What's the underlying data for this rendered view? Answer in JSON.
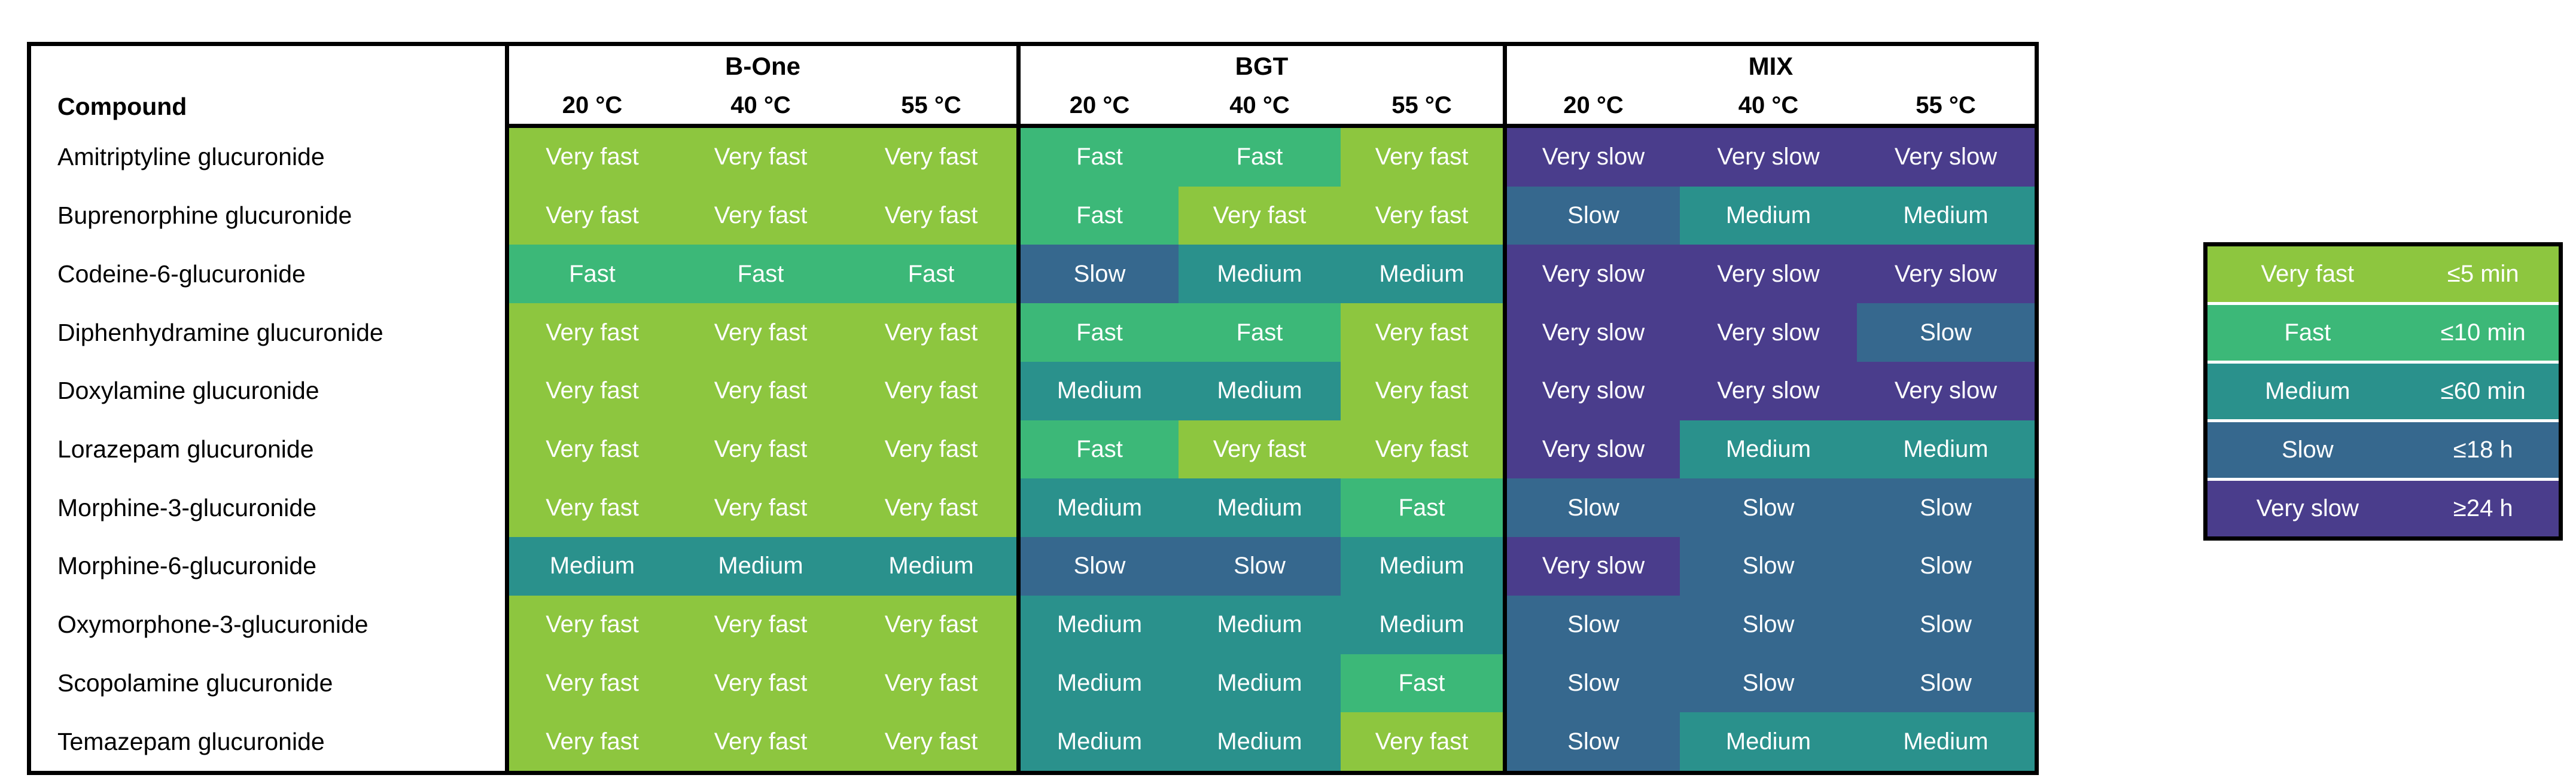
{
  "table": {
    "compound_header": "Compound",
    "groups": [
      {
        "name": "B-One",
        "temps": [
          "20 °C",
          "40 °C",
          "55 °C"
        ]
      },
      {
        "name": "BGT",
        "temps": [
          "20 °C",
          "40 °C",
          "55 °C"
        ]
      },
      {
        "name": "MIX",
        "temps": [
          "20 °C",
          "40 °C",
          "55 °C"
        ]
      }
    ],
    "rows": [
      {
        "compound": "Amitriptyline glucuronide",
        "values": [
          "Very fast",
          "Very fast",
          "Very fast",
          "Fast",
          "Fast",
          "Very fast",
          "Very slow",
          "Very slow",
          "Very slow"
        ]
      },
      {
        "compound": "Buprenorphine glucuronide",
        "values": [
          "Very fast",
          "Very fast",
          "Very fast",
          "Fast",
          "Very fast",
          "Very fast",
          "Slow",
          "Medium",
          "Medium"
        ]
      },
      {
        "compound": "Codeine-6-glucuronide",
        "values": [
          "Fast",
          "Fast",
          "Fast",
          "Slow",
          "Medium",
          "Medium",
          "Very slow",
          "Very slow",
          "Very slow"
        ]
      },
      {
        "compound": "Diphenhydramine glucuronide",
        "values": [
          "Very fast",
          "Very fast",
          "Very fast",
          "Fast",
          "Fast",
          "Very fast",
          "Very slow",
          "Very slow",
          "Slow"
        ]
      },
      {
        "compound": "Doxylamine glucuronide",
        "values": [
          "Very fast",
          "Very fast",
          "Very fast",
          "Medium",
          "Medium",
          "Very fast",
          "Very slow",
          "Very slow",
          "Very slow"
        ]
      },
      {
        "compound": "Lorazepam glucuronide",
        "values": [
          "Very fast",
          "Very fast",
          "Very fast",
          "Fast",
          "Very fast",
          "Very fast",
          "Very slow",
          "Medium",
          "Medium"
        ]
      },
      {
        "compound": "Morphine-3-glucuronide",
        "values": [
          "Very fast",
          "Very fast",
          "Very fast",
          "Medium",
          "Medium",
          "Fast",
          "Slow",
          "Slow",
          "Slow"
        ]
      },
      {
        "compound": "Morphine-6-glucuronide",
        "values": [
          "Medium",
          "Medium",
          "Medium",
          "Slow",
          "Slow",
          "Medium",
          "Very slow",
          "Slow",
          "Slow"
        ]
      },
      {
        "compound": "Oxymorphone-3-glucuronide",
        "values": [
          "Very fast",
          "Very fast",
          "Very fast",
          "Medium",
          "Medium",
          "Medium",
          "Slow",
          "Slow",
          "Slow"
        ]
      },
      {
        "compound": "Scopolamine glucuronide",
        "values": [
          "Very fast",
          "Very fast",
          "Very fast",
          "Medium",
          "Medium",
          "Fast",
          "Slow",
          "Slow",
          "Slow"
        ]
      },
      {
        "compound": "Temazepam glucuronide",
        "values": [
          "Very fast",
          "Very fast",
          "Very fast",
          "Medium",
          "Medium",
          "Very fast",
          "Slow",
          "Medium",
          "Medium"
        ]
      }
    ]
  },
  "levels": {
    "Very fast": "#8DC63F",
    "Fast": "#3CB878",
    "Medium": "#2A918C",
    "Slow": "#36688E",
    "Very slow": "#4A3D8C"
  },
  "legend": {
    "items": [
      {
        "label": "Very fast",
        "value": "≤5 min"
      },
      {
        "label": "Fast",
        "value": "≤10 min"
      },
      {
        "label": "Medium",
        "value": "≤60 min"
      },
      {
        "label": "Slow",
        "value": "≤18 h"
      },
      {
        "label": "Very slow",
        "value": "≥24 h"
      }
    ]
  },
  "chart_data": {
    "type": "heatmap",
    "title": "",
    "row_label_header": "Compound",
    "column_groups": [
      "B-One",
      "BGT",
      "MIX"
    ],
    "columns": [
      "B-One 20 °C",
      "B-One 40 °C",
      "B-One 55 °C",
      "BGT 20 °C",
      "BGT 40 °C",
      "BGT 55 °C",
      "MIX 20 °C",
      "MIX 40 °C",
      "MIX 55 °C"
    ],
    "rows": [
      "Amitriptyline glucuronide",
      "Buprenorphine glucuronide",
      "Codeine-6-glucuronide",
      "Diphenhydramine glucuronide",
      "Doxylamine glucuronide",
      "Lorazepam glucuronide",
      "Morphine-3-glucuronide",
      "Morphine-6-glucuronide",
      "Oxymorphone-3-glucuronide",
      "Scopolamine glucuronide",
      "Temazepam glucuronide"
    ],
    "values": [
      [
        "Very fast",
        "Very fast",
        "Very fast",
        "Fast",
        "Fast",
        "Very fast",
        "Very slow",
        "Very slow",
        "Very slow"
      ],
      [
        "Very fast",
        "Very fast",
        "Very fast",
        "Fast",
        "Very fast",
        "Very fast",
        "Slow",
        "Medium",
        "Medium"
      ],
      [
        "Fast",
        "Fast",
        "Fast",
        "Slow",
        "Medium",
        "Medium",
        "Very slow",
        "Very slow",
        "Very slow"
      ],
      [
        "Very fast",
        "Very fast",
        "Very fast",
        "Fast",
        "Fast",
        "Very fast",
        "Very slow",
        "Very slow",
        "Slow"
      ],
      [
        "Very fast",
        "Very fast",
        "Very fast",
        "Medium",
        "Medium",
        "Very fast",
        "Very slow",
        "Very slow",
        "Very slow"
      ],
      [
        "Very fast",
        "Very fast",
        "Very fast",
        "Fast",
        "Very fast",
        "Very fast",
        "Very slow",
        "Medium",
        "Medium"
      ],
      [
        "Very fast",
        "Very fast",
        "Very fast",
        "Medium",
        "Medium",
        "Fast",
        "Slow",
        "Slow",
        "Slow"
      ],
      [
        "Medium",
        "Medium",
        "Medium",
        "Slow",
        "Slow",
        "Medium",
        "Very slow",
        "Slow",
        "Slow"
      ],
      [
        "Very fast",
        "Very fast",
        "Very fast",
        "Medium",
        "Medium",
        "Medium",
        "Slow",
        "Slow",
        "Slow"
      ],
      [
        "Very fast",
        "Very fast",
        "Very fast",
        "Medium",
        "Medium",
        "Fast",
        "Slow",
        "Slow",
        "Slow"
      ],
      [
        "Very fast",
        "Very fast",
        "Very fast",
        "Medium",
        "Medium",
        "Very fast",
        "Slow",
        "Medium",
        "Medium"
      ]
    ],
    "scale": [
      {
        "label": "Very fast",
        "threshold": "≤5 min",
        "color": "#8DC63F"
      },
      {
        "label": "Fast",
        "threshold": "≤10 min",
        "color": "#3CB878"
      },
      {
        "label": "Medium",
        "threshold": "≤60 min",
        "color": "#2A918C"
      },
      {
        "label": "Slow",
        "threshold": "≤18 h",
        "color": "#36688E"
      },
      {
        "label": "Very slow",
        "threshold": "≥24 h",
        "color": "#4A3D8C"
      }
    ],
    "legend_position": "right",
    "grid": false
  }
}
